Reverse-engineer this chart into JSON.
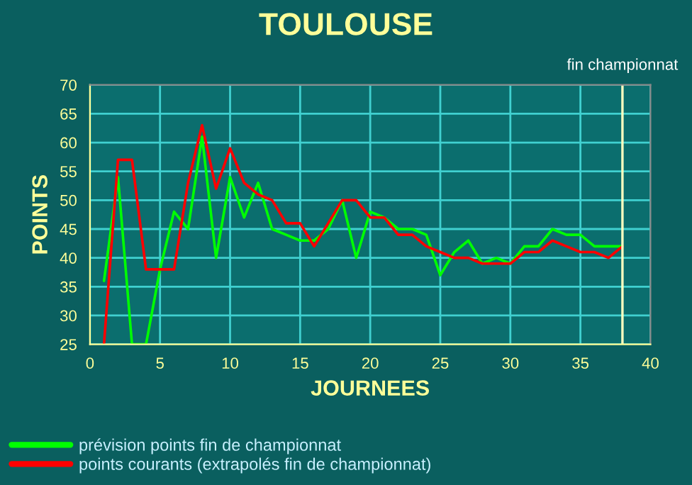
{
  "chart_data": {
    "type": "line",
    "title": "TOULOUSE",
    "xlabel": "JOURNEES",
    "ylabel": "POINTS",
    "x": [
      1,
      2,
      3,
      4,
      5,
      6,
      7,
      8,
      9,
      10,
      11,
      12,
      13,
      14,
      15,
      16,
      17,
      18,
      19,
      20,
      21,
      22,
      23,
      24,
      25,
      26,
      27,
      28,
      29,
      30,
      31,
      32,
      33,
      34,
      35,
      36,
      37,
      38
    ],
    "series": [
      {
        "name": "prévision points fin de championnat",
        "color": "#00ff00",
        "values": [
          36,
          54,
          25,
          25,
          38,
          48,
          45,
          61,
          40,
          54,
          47,
          53,
          45,
          44,
          43,
          43,
          45,
          50,
          40,
          48,
          47,
          45,
          45,
          44,
          37,
          41,
          43,
          39,
          40,
          39,
          42,
          42,
          45,
          44,
          44,
          42,
          42,
          42
        ]
      },
      {
        "name": "points courants (extrapolés fin de championnat)",
        "color": "#ff0000",
        "values": [
          25,
          57,
          57,
          38,
          38,
          38,
          53,
          63,
          52,
          59,
          53,
          51,
          50,
          46,
          46,
          42,
          46,
          50,
          50,
          47,
          47,
          44,
          44,
          42,
          41,
          40,
          40,
          39,
          39,
          39,
          41,
          41,
          43,
          42,
          41,
          41,
          40,
          42
        ]
      }
    ],
    "xlim": [
      0,
      40
    ],
    "xticks": [
      0,
      5,
      10,
      15,
      20,
      25,
      30,
      35,
      40
    ],
    "ylim": [
      25,
      70
    ],
    "yticks": [
      25,
      30,
      35,
      40,
      45,
      50,
      55,
      60,
      65,
      70
    ],
    "ref_lines": [
      {
        "axis": "x",
        "value": 38,
        "label": "fin championnat",
        "color": "#ffffc0"
      }
    ],
    "grid": true,
    "legend": "bottom left",
    "line_style": "solid",
    "marker": "none"
  }
}
